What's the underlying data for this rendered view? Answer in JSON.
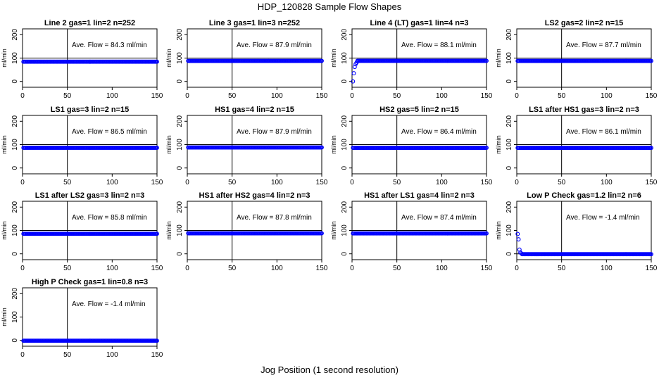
{
  "figure": {
    "title": "HDP_120828  Sample Flow Shapes",
    "xlabel": "Jog Position (1 second resolution)"
  },
  "colors": {
    "points": "#0000ff",
    "axes": "#000000",
    "background": "#ffffff"
  },
  "chart_data": [
    {
      "type": "scatter",
      "title": "Line 2 gas=1 lin=2 n=252",
      "annotation": "Ave. Flow =  84.3  ml/min",
      "ylabel": "ml/min",
      "xlim": [
        0,
        150
      ],
      "ylim": [
        -25,
        225
      ],
      "xticks": [
        0,
        50,
        100,
        150
      ],
      "yticks": [
        0,
        100,
        200
      ],
      "hline": 100,
      "vline": 50,
      "shape": "flat",
      "level": 84.3
    },
    {
      "type": "scatter",
      "title": "Line 3 gas=1 lin=3 n=252",
      "annotation": "Ave. Flow =  87.9  ml/min",
      "ylabel": "ml/min",
      "xlim": [
        0,
        150
      ],
      "ylim": [
        -25,
        225
      ],
      "xticks": [
        0,
        50,
        100,
        150
      ],
      "yticks": [
        0,
        100,
        200
      ],
      "hline": 100,
      "vline": 50,
      "shape": "flat",
      "level": 87.9
    },
    {
      "type": "scatter",
      "title": "Line 4 (LT) gas=1 lin=4 n=3",
      "annotation": "Ave. Flow =  88.1  ml/min",
      "ylabel": "ml/min",
      "xlim": [
        0,
        150
      ],
      "ylim": [
        -25,
        225
      ],
      "xticks": [
        0,
        50,
        100,
        150
      ],
      "yticks": [
        0,
        100,
        200
      ],
      "hline": 100,
      "vline": 50,
      "shape": "ramp",
      "level": 88.1,
      "initial": [
        0,
        35,
        62,
        74,
        80
      ]
    },
    {
      "type": "scatter",
      "title": "LS2 gas=2 lin=2 n=15",
      "annotation": "Ave. Flow =  87.7  ml/min",
      "ylabel": "ml/min",
      "xlim": [
        0,
        150
      ],
      "ylim": [
        -25,
        225
      ],
      "xticks": [
        0,
        50,
        100,
        150
      ],
      "yticks": [
        0,
        100,
        200
      ],
      "hline": 100,
      "vline": 50,
      "shape": "flat",
      "level": 87.7
    },
    {
      "type": "scatter",
      "title": "LS1 gas=3 lin=2 n=15",
      "annotation": "Ave. Flow =  86.5  ml/min",
      "ylabel": "ml/min",
      "xlim": [
        0,
        150
      ],
      "ylim": [
        -25,
        225
      ],
      "xticks": [
        0,
        50,
        100,
        150
      ],
      "yticks": [
        0,
        100,
        200
      ],
      "hline": 100,
      "vline": 50,
      "shape": "flat",
      "level": 86.5
    },
    {
      "type": "scatter",
      "title": "HS1 gas=4 lin=2 n=15",
      "annotation": "Ave. Flow =  87.9  ml/min",
      "ylabel": "ml/min",
      "xlim": [
        0,
        150
      ],
      "ylim": [
        -25,
        225
      ],
      "xticks": [
        0,
        50,
        100,
        150
      ],
      "yticks": [
        0,
        100,
        200
      ],
      "hline": 100,
      "vline": 50,
      "shape": "flat",
      "level": 87.9
    },
    {
      "type": "scatter",
      "title": "HS2 gas=5 lin=2 n=15",
      "annotation": "Ave. Flow =  86.4  ml/min",
      "ylabel": "ml/min",
      "xlim": [
        0,
        150
      ],
      "ylim": [
        -25,
        225
      ],
      "xticks": [
        0,
        50,
        100,
        150
      ],
      "yticks": [
        0,
        100,
        200
      ],
      "hline": 100,
      "vline": 50,
      "shape": "flat",
      "level": 86.4
    },
    {
      "type": "scatter",
      "title": "LS1 after HS1 gas=3 lin=2 n=3",
      "annotation": "Ave. Flow =  86.1  ml/min",
      "ylabel": "ml/min",
      "xlim": [
        0,
        150
      ],
      "ylim": [
        -25,
        225
      ],
      "xticks": [
        0,
        50,
        100,
        150
      ],
      "yticks": [
        0,
        100,
        200
      ],
      "hline": 100,
      "vline": 50,
      "shape": "flat",
      "level": 86.1
    },
    {
      "type": "scatter",
      "title": "LS1 after LS2 gas=3 lin=2 n=3",
      "annotation": "Ave. Flow =  85.8  ml/min",
      "ylabel": "ml/min",
      "xlim": [
        0,
        150
      ],
      "ylim": [
        -25,
        225
      ],
      "xticks": [
        0,
        50,
        100,
        150
      ],
      "yticks": [
        0,
        100,
        200
      ],
      "hline": 100,
      "vline": 50,
      "shape": "flat",
      "level": 85.8
    },
    {
      "type": "scatter",
      "title": "HS1 after HS2 gas=4 lin=2 n=3",
      "annotation": "Ave. Flow =  87.8  ml/min",
      "ylabel": "ml/min",
      "xlim": [
        0,
        150
      ],
      "ylim": [
        -25,
        225
      ],
      "xticks": [
        0,
        50,
        100,
        150
      ],
      "yticks": [
        0,
        100,
        200
      ],
      "hline": 100,
      "vline": 50,
      "shape": "flat",
      "level": 87.8
    },
    {
      "type": "scatter",
      "title": "HS1 after LS1 gas=4 lin=2 n=3",
      "annotation": "Ave. Flow =  87.4  ml/min",
      "ylabel": "ml/min",
      "xlim": [
        0,
        150
      ],
      "ylim": [
        -25,
        225
      ],
      "xticks": [
        0,
        50,
        100,
        150
      ],
      "yticks": [
        0,
        100,
        200
      ],
      "hline": 100,
      "vline": 50,
      "shape": "flat",
      "level": 87.4
    },
    {
      "type": "scatter",
      "title": "Low P Check gas=1.2 lin=2 n=6",
      "annotation": "Ave. Flow =  -1.4  ml/min",
      "ylabel": "ml/min",
      "xlim": [
        0,
        150
      ],
      "ylim": [
        -25,
        225
      ],
      "xticks": [
        0,
        50,
        100,
        150
      ],
      "yticks": [
        0,
        100,
        200
      ],
      "hline": 0,
      "vline": 50,
      "shape": "decay",
      "level": -1.4,
      "initial": [
        85,
        62,
        18,
        6,
        2
      ]
    },
    {
      "type": "scatter",
      "title": "High P Check gas=1 lin=0.8 n=3",
      "annotation": "Ave. Flow =  -1.4  ml/min",
      "ylabel": "ml/min",
      "xlim": [
        0,
        150
      ],
      "ylim": [
        -25,
        225
      ],
      "xticks": [
        0,
        50,
        100,
        150
      ],
      "yticks": [
        0,
        100,
        200
      ],
      "hline": 0,
      "vline": 50,
      "shape": "flat",
      "level": -1.4
    }
  ]
}
